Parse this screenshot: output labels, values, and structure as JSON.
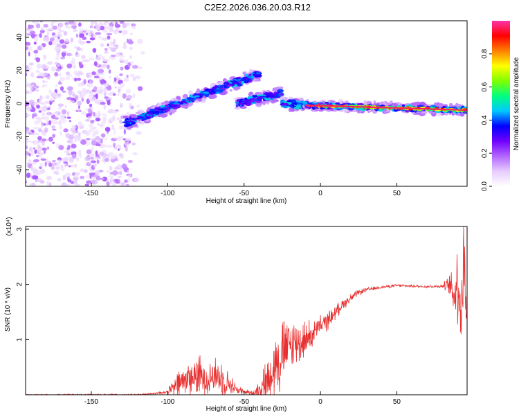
{
  "title": "C2E2.2026.036.20.03.R12",
  "chart_data": [
    {
      "type": "heatmap",
      "xlabel": "Height of straight line (km)",
      "ylabel": "Frequency (Hz)",
      "xlim": [
        -193,
        96
      ],
      "ylim": [
        -50,
        50
      ],
      "x_ticks": [
        -150,
        -100,
        -50,
        0,
        50
      ],
      "y_ticks": [
        -40,
        -20,
        0,
        20,
        40
      ],
      "colorbar": {
        "label": "Normalized spectral amplitude",
        "range": [
          0,
          1
        ],
        "ticks": [
          0.0,
          0.2,
          0.4,
          0.6,
          0.8
        ],
        "colors": [
          "#ffffff",
          "#e6ccff",
          "#b366ff",
          "#7000ff",
          "#0000ff",
          "#00c8ff",
          "#00ff80",
          "#80ff00",
          "#ffff00",
          "#ff8000",
          "#ff0000",
          "#ff33aa"
        ]
      },
      "features": [
        {
          "kind": "noise",
          "x_range": [
            -193,
            -115
          ],
          "y_range": [
            -50,
            50
          ],
          "amplitude": [
            0.05,
            0.2
          ]
        },
        {
          "kind": "segment",
          "from": [
            -128,
            -12
          ],
          "to": [
            -40,
            18
          ],
          "amplitude": 0.45
        },
        {
          "kind": "segment",
          "from": [
            -55,
            0
          ],
          "to": [
            -25,
            6
          ],
          "amplitude": 0.45
        },
        {
          "kind": "segment",
          "from": [
            -25,
            0
          ],
          "to": [
            -10,
            -1
          ],
          "amplitude": 0.5
        },
        {
          "kind": "segment",
          "from": [
            -10,
            -1
          ],
          "to": [
            96,
            -4
          ],
          "amplitude": 0.95
        }
      ]
    },
    {
      "type": "line",
      "xlabel": "Height of straight line (km)",
      "ylabel": "SNR (10 * v/v)",
      "y_scale_label": "(x10⁴)",
      "xlim": [
        -193,
        96
      ],
      "ylim": [
        0,
        3.05
      ],
      "x_ticks": [
        -150,
        -100,
        -50,
        0,
        50
      ],
      "y_ticks": [
        1,
        2,
        3
      ],
      "series_color": "#e83030",
      "x": [
        -193,
        -120,
        -110,
        -100,
        -95,
        -90,
        -85,
        -80,
        -75,
        -70,
        -65,
        -60,
        -55,
        -50,
        -45,
        -40,
        -35,
        -30,
        -25,
        -20,
        -15,
        -10,
        -5,
        0,
        5,
        10,
        15,
        20,
        25,
        30,
        40,
        50,
        60,
        70,
        80,
        85,
        88,
        90,
        92,
        94,
        96
      ],
      "values": [
        0.0,
        0.0,
        0.02,
        0.05,
        0.15,
        0.25,
        0.3,
        0.35,
        0.3,
        0.35,
        0.3,
        0.2,
        0.1,
        0.05,
        0.03,
        0.1,
        0.25,
        0.55,
        0.75,
        0.9,
        0.95,
        1.0,
        1.1,
        1.25,
        1.35,
        1.5,
        1.65,
        1.75,
        1.85,
        1.9,
        1.95,
        1.98,
        1.97,
        1.96,
        1.97,
        1.97,
        1.8,
        2.2,
        1.5,
        2.4,
        1.6
      ],
      "noise_amplitude": [
        0.02,
        0.02,
        0.02,
        0.05,
        0.25,
        0.4,
        0.45,
        0.45,
        0.4,
        0.4,
        0.4,
        0.25,
        0.12,
        0.06,
        0.05,
        0.2,
        0.5,
        0.7,
        0.8,
        0.6,
        0.5,
        0.4,
        0.3,
        0.22,
        0.2,
        0.15,
        0.12,
        0.1,
        0.06,
        0.05,
        0.03,
        0.03,
        0.03,
        0.03,
        0.04,
        0.25,
        0.8,
        1.0,
        1.1,
        1.2,
        1.0
      ]
    }
  ]
}
